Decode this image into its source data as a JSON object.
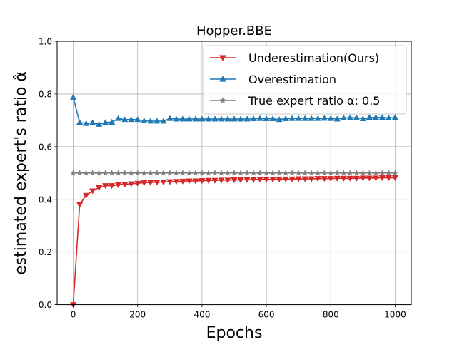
{
  "chart_data": {
    "type": "line",
    "title": "Hopper.BBE",
    "xlabel": "Epochs",
    "ylabel": "estimated expert's ratio α̂",
    "xlim": [
      -50,
      1050
    ],
    "ylim": [
      0.0,
      1.0
    ],
    "xticks": [
      0,
      200,
      400,
      600,
      800,
      1000
    ],
    "yticks": [
      0.0,
      0.2,
      0.4,
      0.6,
      0.8,
      1.0
    ],
    "grid": true,
    "legend_position": "top-right",
    "x": [
      0,
      20,
      40,
      60,
      80,
      100,
      120,
      140,
      160,
      180,
      200,
      220,
      240,
      260,
      280,
      300,
      320,
      340,
      360,
      380,
      400,
      420,
      440,
      460,
      480,
      500,
      520,
      540,
      560,
      580,
      600,
      620,
      640,
      660,
      680,
      700,
      720,
      740,
      760,
      780,
      800,
      820,
      840,
      860,
      880,
      900,
      920,
      940,
      960,
      980,
      1000
    ],
    "series": [
      {
        "name": "Underestimation(Ours)",
        "color": "#d62728",
        "marker": "triangle-down",
        "values": [
          0.0,
          0.38,
          0.415,
          0.432,
          0.445,
          0.452,
          0.452,
          0.455,
          0.457,
          0.459,
          0.461,
          0.463,
          0.464,
          0.465,
          0.466,
          0.467,
          0.468,
          0.469,
          0.47,
          0.47,
          0.471,
          0.472,
          0.472,
          0.473,
          0.473,
          0.474,
          0.474,
          0.475,
          0.475,
          0.476,
          0.476,
          0.476,
          0.477,
          0.477,
          0.477,
          0.478,
          0.478,
          0.478,
          0.479,
          0.479,
          0.479,
          0.48,
          0.48,
          0.48,
          0.48,
          0.481,
          0.481,
          0.481,
          0.482,
          0.482,
          0.482
        ]
      },
      {
        "name": "Overestimation",
        "color": "#1f77b4",
        "marker": "triangle-up",
        "values": [
          0.787,
          0.692,
          0.688,
          0.691,
          0.685,
          0.692,
          0.693,
          0.707,
          0.703,
          0.703,
          0.703,
          0.698,
          0.697,
          0.697,
          0.697,
          0.707,
          0.705,
          0.705,
          0.705,
          0.705,
          0.705,
          0.705,
          0.705,
          0.705,
          0.705,
          0.705,
          0.705,
          0.705,
          0.706,
          0.707,
          0.706,
          0.706,
          0.703,
          0.706,
          0.707,
          0.707,
          0.707,
          0.707,
          0.707,
          0.708,
          0.707,
          0.705,
          0.709,
          0.71,
          0.71,
          0.706,
          0.711,
          0.711,
          0.711,
          0.709,
          0.711
        ]
      },
      {
        "name": "True expert ratio α: 0.5",
        "color": "#7f7f7f",
        "marker": "star",
        "values": [
          0.5,
          0.5,
          0.5,
          0.5,
          0.5,
          0.5,
          0.5,
          0.5,
          0.5,
          0.5,
          0.5,
          0.5,
          0.5,
          0.5,
          0.5,
          0.5,
          0.5,
          0.5,
          0.5,
          0.5,
          0.5,
          0.5,
          0.5,
          0.5,
          0.5,
          0.5,
          0.5,
          0.5,
          0.5,
          0.5,
          0.5,
          0.5,
          0.5,
          0.5,
          0.5,
          0.5,
          0.5,
          0.5,
          0.5,
          0.5,
          0.5,
          0.5,
          0.5,
          0.5,
          0.5,
          0.5,
          0.5,
          0.5,
          0.5,
          0.5,
          0.5
        ]
      }
    ]
  }
}
